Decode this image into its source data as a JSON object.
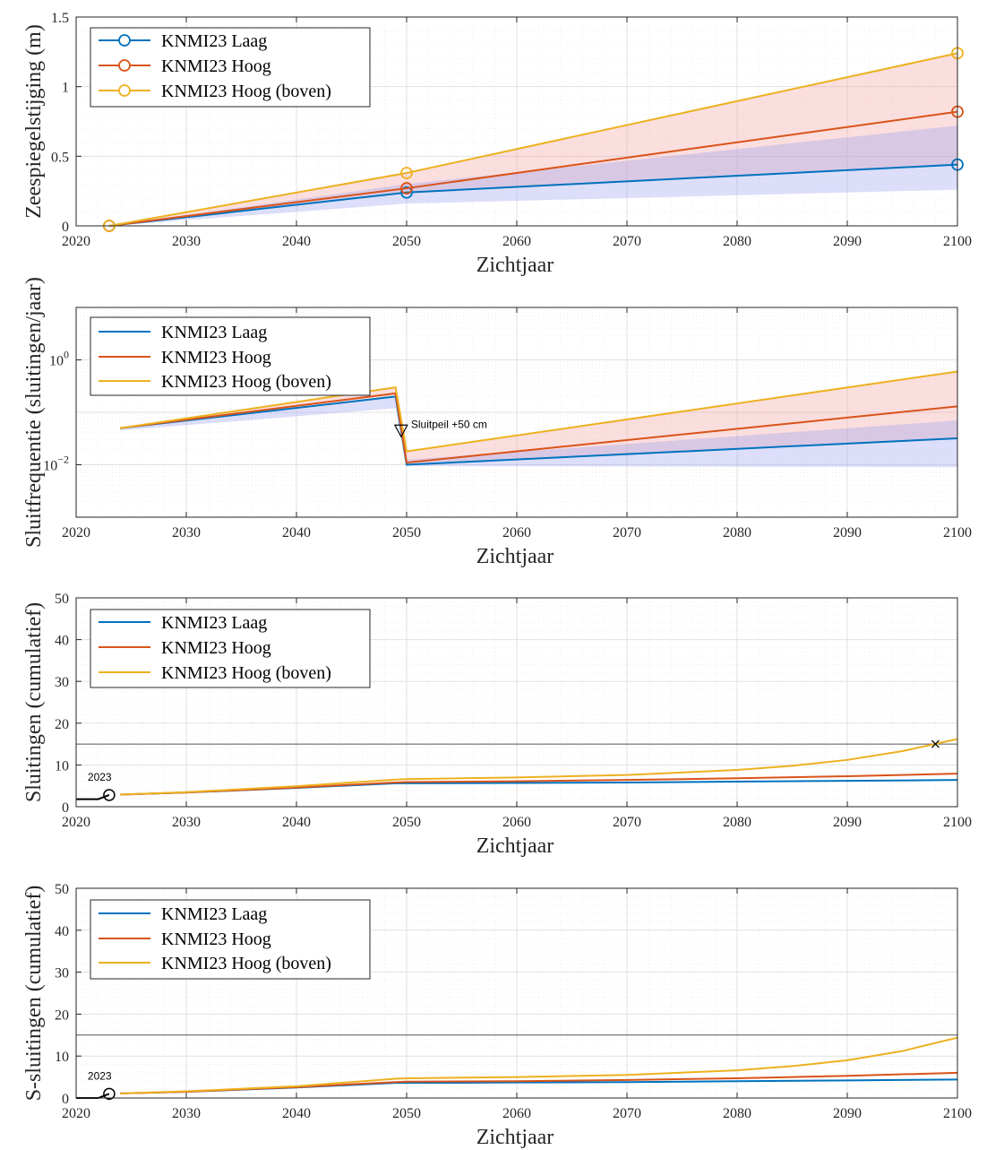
{
  "colors": {
    "laag": "#0072BD",
    "hoog": "#D95319",
    "boven": "#EDB120",
    "band_red": "#f4a0a0",
    "band_blue": "#9aa0f0",
    "axis": "#262626",
    "grid": "#e0e0e0"
  },
  "legend": {
    "laag": "KNMI23 Laag",
    "hoog": "KNMI23 Hoog",
    "boven": "KNMI23 Hoog (boven)"
  },
  "chart_data": [
    {
      "type": "line",
      "xlabel": "Zichtjaar",
      "ylabel": "Zeespiegelstijging (m)",
      "xlim": [
        2020,
        2100
      ],
      "ylim": [
        0,
        1.5
      ],
      "xticks": [
        2020,
        2030,
        2040,
        2050,
        2060,
        2070,
        2080,
        2090,
        2100
      ],
      "yticks": [
        0,
        0.5,
        1,
        1.5
      ],
      "ytick_labels": [
        "0",
        "0.5",
        "1",
        "1.5"
      ],
      "yscale": "linear",
      "grid": true,
      "legend_position": "top-left",
      "legend_markers": true,
      "series": [
        {
          "key": "laag",
          "x": [
            2023,
            2050,
            2100
          ],
          "y": [
            0,
            0.24,
            0.44
          ],
          "markers": true
        },
        {
          "key": "hoog",
          "x": [
            2023,
            2050,
            2100
          ],
          "y": [
            0,
            0.27,
            0.82
          ],
          "markers": true
        },
        {
          "key": "boven",
          "x": [
            2023,
            2050,
            2100
          ],
          "y": [
            0,
            0.38,
            1.24
          ],
          "markers": true
        }
      ],
      "bands": [
        {
          "color": "red",
          "x": [
            2023,
            2050,
            2100
          ],
          "lower": [
            0,
            0.24,
            0.44
          ],
          "upper": [
            0,
            0.38,
            1.24
          ]
        },
        {
          "color": "blue",
          "x": [
            2023,
            2050,
            2100
          ],
          "lower": [
            0,
            0.16,
            0.26
          ],
          "upper": [
            0,
            0.3,
            0.72
          ]
        }
      ]
    },
    {
      "type": "line",
      "xlabel": "Zichtjaar",
      "ylabel": "Sluitfrequentie (sluitingen/jaar)",
      "xlim": [
        2020,
        2100
      ],
      "ylim_log10": [
        -3,
        1
      ],
      "xticks": [
        2020,
        2030,
        2040,
        2050,
        2060,
        2070,
        2080,
        2090,
        2100
      ],
      "yticks_log10": [
        -2,
        0
      ],
      "ytick_labels": [
        "10",
        "10"
      ],
      "ytick_exponents": [
        "−2",
        "0"
      ],
      "yscale": "log",
      "grid": true,
      "legend_position": "top-left",
      "legend_markers": false,
      "annotation": {
        "text": "Sluitpeil +50 cm",
        "x": 2049.5,
        "y": 0.045
      },
      "series": [
        {
          "key": "laag",
          "x": [
            2024,
            2049,
            2050,
            2100
          ],
          "y": [
            0.05,
            0.2,
            0.01,
            0.032
          ]
        },
        {
          "key": "hoog",
          "x": [
            2024,
            2049,
            2050,
            2100
          ],
          "y": [
            0.05,
            0.23,
            0.011,
            0.13
          ]
        },
        {
          "key": "boven",
          "x": [
            2024,
            2049,
            2050,
            2100
          ],
          "y": [
            0.05,
            0.3,
            0.018,
            0.6
          ]
        }
      ],
      "bands": [
        {
          "color": "red",
          "x": [
            2024,
            2049,
            2050,
            2100
          ],
          "lower": [
            0.05,
            0.2,
            0.01,
            0.032
          ],
          "upper": [
            0.05,
            0.3,
            0.018,
            0.6
          ]
        },
        {
          "color": "blue",
          "x": [
            2024,
            2049,
            2050,
            2100
          ],
          "lower": [
            0.045,
            0.12,
            0.0095,
            0.009
          ],
          "upper": [
            0.05,
            0.2,
            0.0125,
            0.07
          ]
        }
      ]
    },
    {
      "type": "line",
      "xlabel": "Zichtjaar",
      "ylabel": "Sluitingen (cumulatief)",
      "xlim": [
        2020,
        2100
      ],
      "ylim": [
        0,
        50
      ],
      "xticks": [
        2020,
        2030,
        2040,
        2050,
        2060,
        2070,
        2080,
        2090,
        2100
      ],
      "yticks": [
        0,
        10,
        20,
        30,
        40,
        50
      ],
      "ytick_labels": [
        "0",
        "10",
        "20",
        "30",
        "40",
        "50"
      ],
      "yscale": "linear",
      "grid": true,
      "legend_position": "top-left",
      "legend_markers": false,
      "hline": 15,
      "start_label": "2023",
      "start_point": {
        "x": 2023,
        "y": 2.8
      },
      "history": {
        "x": [
          2020,
          2022,
          2023
        ],
        "y": [
          1.8,
          1.8,
          2.8
        ]
      },
      "cross": {
        "x": 2098,
        "y": 15
      },
      "series": [
        {
          "key": "laag",
          "x": [
            2024,
            2030,
            2040,
            2049,
            2050,
            2060,
            2070,
            2080,
            2090,
            2100
          ],
          "y": [
            2.9,
            3.4,
            4.5,
            5.6,
            5.6,
            5.7,
            5.8,
            6.0,
            6.2,
            6.4
          ]
        },
        {
          "key": "hoog",
          "x": [
            2024,
            2030,
            2040,
            2049,
            2050,
            2060,
            2070,
            2080,
            2090,
            2100
          ],
          "y": [
            2.9,
            3.4,
            4.6,
            5.8,
            5.9,
            6.1,
            6.4,
            6.8,
            7.3,
            7.9
          ]
        },
        {
          "key": "boven",
          "x": [
            2024,
            2030,
            2040,
            2049,
            2050,
            2060,
            2070,
            2080,
            2085,
            2090,
            2095,
            2100
          ],
          "y": [
            2.9,
            3.5,
            4.9,
            6.5,
            6.6,
            7.0,
            7.6,
            8.8,
            9.8,
            11.2,
            13.3,
            16.2
          ]
        }
      ]
    },
    {
      "type": "line",
      "xlabel": "Zichtjaar",
      "ylabel": "S-sluitingen (cumulatief)",
      "xlim": [
        2020,
        2100
      ],
      "ylim": [
        0,
        50
      ],
      "xticks": [
        2020,
        2030,
        2040,
        2050,
        2060,
        2070,
        2080,
        2090,
        2100
      ],
      "yticks": [
        0,
        10,
        20,
        30,
        40,
        50
      ],
      "ytick_labels": [
        "0",
        "10",
        "20",
        "30",
        "40",
        "50"
      ],
      "yscale": "linear",
      "grid": true,
      "legend_position": "top-left",
      "legend_markers": false,
      "hline": 15,
      "start_label": "2023",
      "start_point": {
        "x": 2023,
        "y": 1.0
      },
      "history": {
        "x": [
          2020,
          2022,
          2023
        ],
        "y": [
          0,
          0,
          1.0
        ]
      },
      "series": [
        {
          "key": "laag",
          "x": [
            2024,
            2030,
            2040,
            2049,
            2050,
            2060,
            2070,
            2080,
            2090,
            2100
          ],
          "y": [
            1.1,
            1.5,
            2.5,
            3.6,
            3.6,
            3.7,
            3.8,
            4.0,
            4.2,
            4.4
          ]
        },
        {
          "key": "hoog",
          "x": [
            2024,
            2030,
            2040,
            2049,
            2050,
            2060,
            2070,
            2080,
            2090,
            2100
          ],
          "y": [
            1.1,
            1.5,
            2.6,
            3.8,
            3.9,
            4.0,
            4.3,
            4.7,
            5.3,
            6.0
          ]
        },
        {
          "key": "boven",
          "x": [
            2024,
            2030,
            2040,
            2049,
            2050,
            2060,
            2070,
            2080,
            2085,
            2090,
            2095,
            2100
          ],
          "y": [
            1.1,
            1.6,
            2.8,
            4.6,
            4.7,
            5.0,
            5.5,
            6.6,
            7.6,
            9.0,
            11.2,
            14.4
          ]
        }
      ]
    }
  ]
}
